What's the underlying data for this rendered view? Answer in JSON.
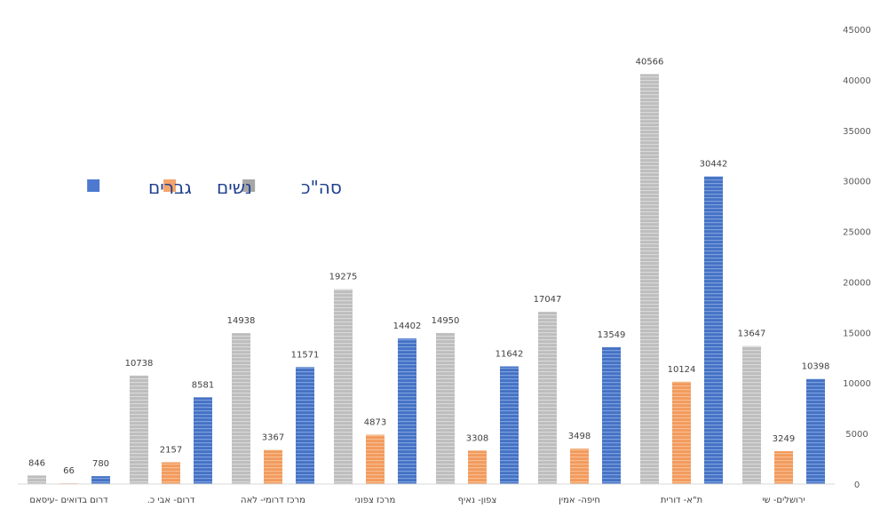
{
  "chart_data": {
    "type": "bar",
    "categories": [
      "ירושלים- שי",
      "ת\"א- דורית",
      "חיפה- אמין",
      "צפון- נאיף",
      "מרכז צפוני",
      "מרכז דרומי- לאה",
      "דרום- אבי כ.",
      "דרום בדואים -עיסאם"
    ],
    "series": [
      {
        "name": "סה\"כ",
        "values": [
          13647,
          40566,
          17047,
          14950,
          19275,
          14938,
          10738,
          846
        ]
      },
      {
        "name": "נשים",
        "values": [
          3249,
          10124,
          3498,
          3308,
          4873,
          3367,
          2157,
          66
        ]
      },
      {
        "name": "גברים",
        "values": [
          10398,
          30442,
          13549,
          11642,
          14402,
          11571,
          8581,
          780
        ]
      }
    ],
    "ylim": [
      0,
      45000
    ],
    "yticks": [
      0,
      5000,
      10000,
      15000,
      20000,
      25000,
      30000,
      35000,
      40000,
      45000
    ],
    "y_axis_side": "right",
    "category_order": "right-to-left",
    "legend_position": "left",
    "grid": false,
    "colors": {
      "סה\"כ": "#b3b3b3",
      "נשים": "#f4a46c",
      "גברים": "#4d79cf"
    }
  }
}
